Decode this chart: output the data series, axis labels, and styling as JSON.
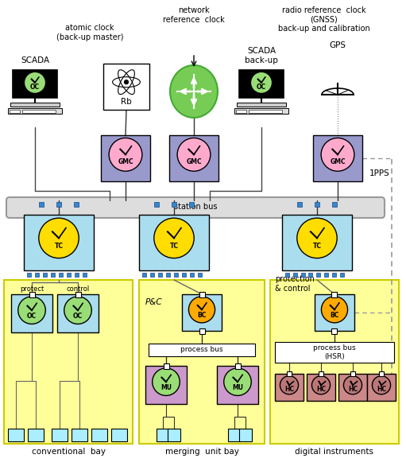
{
  "bg_color": "#ffffff",
  "colors": {
    "gmc_box": "#9999cc",
    "gmc_face": "#ffaacc",
    "tc_box": "#aaddee",
    "tc_face": "#ffdd00",
    "bc_face": "#ffaa00",
    "oc_face": "#99dd77",
    "mu_box": "#cc99cc",
    "hc_box": "#cc8888",
    "station_bus_bg": "#dddddd",
    "bay_yellow": "#ffff99",
    "network_circle": "#77cc55",
    "connector_blue": "#3388cc",
    "protect_box": "#aaddee",
    "line_gray": "#666666",
    "dashed_line": "#888888"
  },
  "labels": {
    "atomic_clock": "atomic clock\n(back-up master)",
    "network_ref": "network\nreference  clock",
    "radio_ref": "radio reference  clock\n(GNSS)\nback-up and calibration",
    "scada": "SCADA",
    "scada_backup": "SCADA\nback-up",
    "gps": "GPS",
    "rb": "Rb",
    "gmc": "GMC",
    "tc": "TC",
    "bc": "BC",
    "oc": "OC",
    "mu": "MU",
    "hc": "HC",
    "station_bus": "station bus",
    "process_bus": "process bus",
    "process_bus_hsr": "process bus\n(HSR)",
    "protect": "protect",
    "control": "control",
    "pc": "P&C",
    "prot_ctrl": "protection\n& control",
    "1pps": "1PPS",
    "conventional_bay": "conventional  bay",
    "merging_unit_bay": "merging  unit bay",
    "digital_instruments": "digital instruments"
  }
}
